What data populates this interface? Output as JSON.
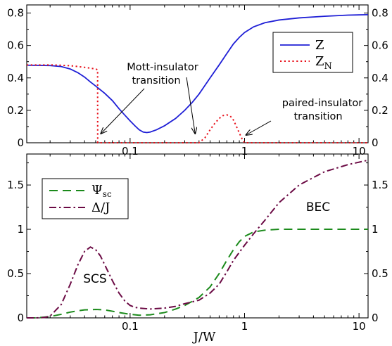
{
  "chart_data": [
    {
      "type": "line",
      "panel": "top",
      "xscale": "log",
      "xlim": [
        0.0125,
        12
      ],
      "ylim": [
        0,
        0.85
      ],
      "yticks": [
        "0",
        "0.2",
        "0.4",
        "0.6",
        "0.8"
      ],
      "xticks": [
        "0.1",
        "1",
        "10"
      ],
      "legend": {
        "placement": "top-right",
        "entries": [
          "Z",
          "Z_N"
        ]
      },
      "annotations": [
        {
          "text": [
            "Mott-insulator",
            "transition"
          ],
          "arrows_to_x": [
            0.053,
            0.37
          ]
        },
        {
          "text": [
            "paired-insulator",
            "transition"
          ],
          "arrows_to_x": [
            1.0
          ]
        }
      ],
      "series": [
        {
          "name": "Z",
          "color": "#1f1fd6",
          "style": "solid",
          "x": [
            0.0125,
            0.02,
            0.025,
            0.03,
            0.035,
            0.04,
            0.045,
            0.05,
            0.06,
            0.07,
            0.08,
            0.09,
            0.1,
            0.11,
            0.12,
            0.13,
            0.14,
            0.15,
            0.17,
            0.2,
            0.25,
            0.3,
            0.35,
            0.4,
            0.5,
            0.6,
            0.7,
            0.8,
            0.9,
            1.0,
            1.2,
            1.5,
            2,
            3,
            5,
            8,
            12
          ],
          "y": [
            0.478,
            0.476,
            0.47,
            0.455,
            0.432,
            0.405,
            0.375,
            0.35,
            0.305,
            0.26,
            0.21,
            0.17,
            0.135,
            0.105,
            0.08,
            0.066,
            0.063,
            0.066,
            0.08,
            0.105,
            0.15,
            0.2,
            0.25,
            0.3,
            0.4,
            0.48,
            0.55,
            0.61,
            0.65,
            0.68,
            0.715,
            0.74,
            0.757,
            0.77,
            0.78,
            0.787,
            0.79
          ]
        },
        {
          "name": "Z_N",
          "color": "#e8101a",
          "style": "dotted",
          "x": [
            0.0125,
            0.02,
            0.025,
            0.03,
            0.035,
            0.04,
            0.045,
            0.05,
            0.052,
            0.0521,
            0.3,
            0.4,
            0.45,
            0.5,
            0.55,
            0.6,
            0.65,
            0.7,
            0.75,
            0.8,
            0.85,
            0.9,
            0.95,
            1.0,
            1.05,
            2,
            5,
            12
          ],
          "y": [
            0.48,
            0.48,
            0.478,
            0.475,
            0.47,
            0.465,
            0.46,
            0.455,
            0.45,
            0.0,
            0.0,
            0.0,
            0.03,
            0.08,
            0.12,
            0.15,
            0.168,
            0.172,
            0.165,
            0.14,
            0.1,
            0.06,
            0.025,
            0.0,
            0.0,
            0.0,
            0.0,
            0.0
          ]
        }
      ]
    },
    {
      "type": "line",
      "panel": "bottom",
      "xscale": "log",
      "xlim": [
        0.0125,
        12
      ],
      "ylim": [
        0,
        1.85
      ],
      "yticks": [
        "0",
        "0.5",
        "1",
        "1.5"
      ],
      "xticks": [
        "0.1",
        "1",
        "10"
      ],
      "xlabel": "J/W",
      "legend": {
        "placement": "top-left",
        "entries": [
          "Ψsc",
          "Δ/J"
        ]
      },
      "annotations": [
        {
          "text": "SCS"
        },
        {
          "text": "BEC"
        }
      ],
      "series": [
        {
          "name": "Ψsc",
          "color": "#1b8a1b",
          "style": "dashed",
          "x": [
            0.0125,
            0.015,
            0.02,
            0.025,
            0.03,
            0.035,
            0.04,
            0.05,
            0.06,
            0.07,
            0.08,
            0.1,
            0.12,
            0.15,
            0.2,
            0.25,
            0.3,
            0.4,
            0.5,
            0.6,
            0.7,
            0.8,
            0.9,
            1.0,
            1.2,
            1.5,
            2,
            3,
            5,
            8,
            12
          ],
          "y": [
            0.0,
            0.0,
            0.015,
            0.04,
            0.065,
            0.08,
            0.09,
            0.095,
            0.09,
            0.075,
            0.06,
            0.04,
            0.03,
            0.035,
            0.06,
            0.1,
            0.14,
            0.23,
            0.35,
            0.5,
            0.65,
            0.77,
            0.86,
            0.92,
            0.97,
            0.99,
            1.0,
            1.0,
            1.0,
            1.0,
            1.0
          ]
        },
        {
          "name": "Δ/J",
          "color": "#6b0a44",
          "style": "dash-dot",
          "x": [
            0.0125,
            0.015,
            0.018,
            0.02,
            0.025,
            0.03,
            0.035,
            0.04,
            0.045,
            0.05,
            0.055,
            0.06,
            0.07,
            0.08,
            0.09,
            0.1,
            0.11,
            0.12,
            0.15,
            0.2,
            0.25,
            0.3,
            0.4,
            0.5,
            0.6,
            0.7,
            0.8,
            1.0,
            1.2,
            1.5,
            2,
            3,
            5,
            8,
            12
          ],
          "y": [
            0.0,
            0.0,
            0.005,
            0.02,
            0.15,
            0.38,
            0.6,
            0.75,
            0.8,
            0.77,
            0.7,
            0.6,
            0.42,
            0.28,
            0.19,
            0.14,
            0.12,
            0.11,
            0.1,
            0.11,
            0.13,
            0.16,
            0.2,
            0.28,
            0.38,
            0.52,
            0.65,
            0.82,
            0.95,
            1.1,
            1.3,
            1.5,
            1.65,
            1.73,
            1.78
          ]
        }
      ]
    }
  ]
}
